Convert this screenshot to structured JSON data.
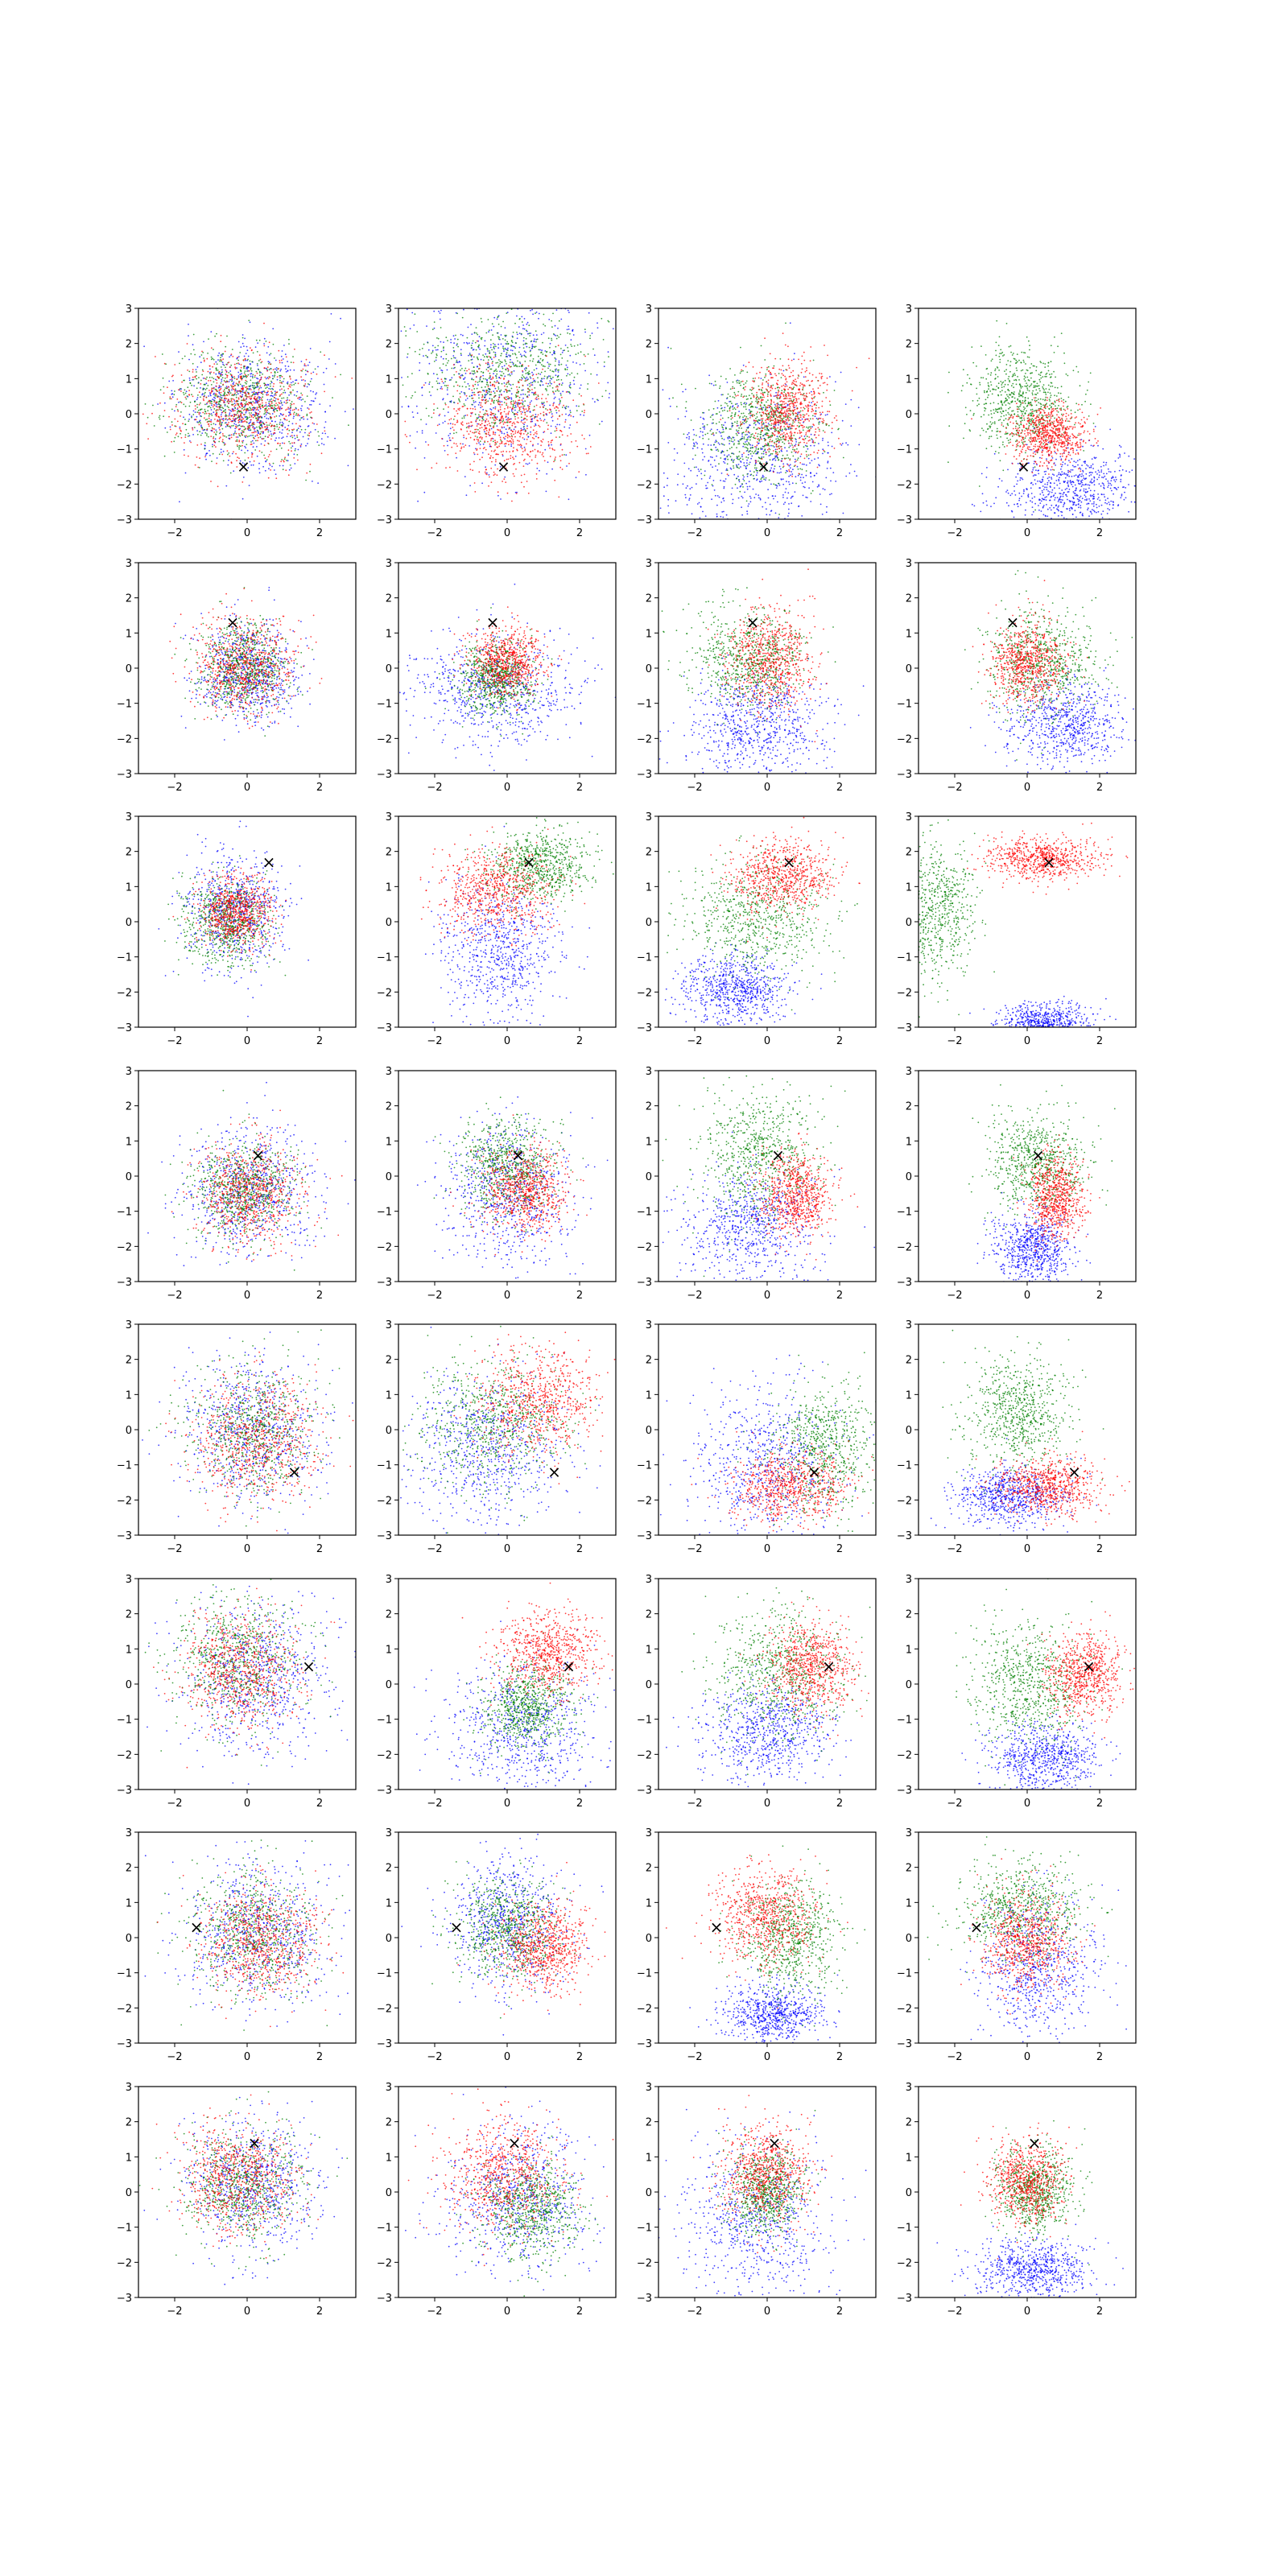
{
  "chart_data": {
    "type": "scatter",
    "layout": {
      "rows": 8,
      "cols": 4
    },
    "xlim": [
      -3,
      3
    ],
    "ylim": [
      -3,
      3
    ],
    "xticks": [
      -2,
      0,
      2
    ],
    "yticks": [
      -3,
      -2,
      -1,
      0,
      1,
      2,
      3
    ],
    "xtick_labels": [
      "−2",
      "0",
      "2"
    ],
    "ytick_labels": [
      "−3",
      "−2",
      "−1",
      "0",
      "1",
      "2",
      "3"
    ],
    "grid": false,
    "legend": false,
    "colors": {
      "blue": "#0000ff",
      "green": "#008000",
      "red": "#ff0000",
      "marker": "#000000"
    },
    "marker_symbol": "×",
    "series_colors": [
      "blue",
      "green",
      "red"
    ],
    "points_per_series": 700,
    "note_values": "each series is a dense Gaussian point cloud; values given as centre (cx, cy) and spread (sx, sy) in data units",
    "rows_data": [
      {
        "marker": [
          -0.1,
          -1.5
        ],
        "panels": [
          [
            [
              0.1,
              0.2,
              1.0,
              0.9
            ],
            [
              -0.2,
              0.4,
              0.9,
              0.8
            ],
            [
              -0.1,
              0.2,
              0.9,
              0.8
            ]
          ],
          [
            [
              0.0,
              1.0,
              1.4,
              1.3
            ],
            [
              0.0,
              1.2,
              1.2,
              0.9
            ],
            [
              0.0,
              -0.3,
              0.9,
              0.8
            ]
          ],
          [
            [
              -0.4,
              -1.4,
              1.3,
              1.1
            ],
            [
              -0.2,
              -0.3,
              0.8,
              0.8
            ],
            [
              0.5,
              0.1,
              0.6,
              0.7
            ]
          ],
          [
            [
              1.2,
              -2.2,
              0.9,
              0.6
            ],
            [
              -0.2,
              0.4,
              0.7,
              0.7
            ],
            [
              0.6,
              -0.6,
              0.5,
              0.4
            ]
          ]
        ]
      },
      {
        "marker": [
          -0.4,
          1.3
        ],
        "panels": [
          [
            [
              0.0,
              -0.1,
              0.7,
              0.7
            ],
            [
              -0.1,
              0.0,
              0.6,
              0.6
            ],
            [
              -0.1,
              0.1,
              0.7,
              0.7
            ]
          ],
          [
            [
              -0.3,
              -0.6,
              1.2,
              0.8
            ],
            [
              -0.3,
              -0.3,
              0.5,
              0.5
            ],
            [
              0.0,
              0.2,
              0.5,
              0.5
            ]
          ],
          [
            [
              -0.3,
              -1.6,
              1.0,
              0.7
            ],
            [
              -0.5,
              0.3,
              0.8,
              0.7
            ],
            [
              0.1,
              0.2,
              0.6,
              0.7
            ]
          ],
          [
            [
              1.1,
              -1.6,
              0.8,
              0.6
            ],
            [
              0.4,
              0.2,
              0.8,
              0.8
            ],
            [
              0.0,
              0.2,
              0.5,
              0.6
            ]
          ]
        ]
      },
      {
        "marker": [
          0.6,
          1.7
        ],
        "panels": [
          [
            [
              -0.3,
              0.3,
              0.7,
              0.8
            ],
            [
              -0.6,
              0.0,
              0.6,
              0.6
            ],
            [
              -0.3,
              0.3,
              0.5,
              0.5
            ]
          ],
          [
            [
              -0.2,
              -0.9,
              0.8,
              1.0
            ],
            [
              0.9,
              1.6,
              0.7,
              0.5
            ],
            [
              -0.3,
              0.9,
              0.8,
              0.6
            ]
          ],
          [
            [
              -0.9,
              -1.9,
              0.7,
              0.5
            ],
            [
              -0.3,
              0.1,
              1.0,
              0.8
            ],
            [
              0.4,
              1.3,
              0.7,
              0.5
            ]
          ],
          [
            [
              0.5,
              -2.9,
              0.6,
              0.3
            ],
            [
              -2.6,
              0.3,
              0.6,
              1.0
            ],
            [
              0.4,
              1.8,
              0.8,
              0.3
            ]
          ]
        ]
      },
      {
        "marker": [
          0.3,
          0.6
        ],
        "panels": [
          [
            [
              0.1,
              -0.4,
              0.9,
              0.9
            ],
            [
              -0.1,
              -0.4,
              0.7,
              0.7
            ],
            [
              0.1,
              -0.5,
              0.7,
              0.7
            ]
          ],
          [
            [
              0.0,
              -0.5,
              0.9,
              1.0
            ],
            [
              0.0,
              0.3,
              0.7,
              0.7
            ],
            [
              0.5,
              -0.4,
              0.6,
              0.6
            ]
          ],
          [
            [
              -0.5,
              -1.4,
              0.9,
              0.8
            ],
            [
              -0.2,
              0.6,
              0.8,
              0.9
            ],
            [
              0.8,
              -0.5,
              0.5,
              0.6
            ]
          ],
          [
            [
              0.2,
              -2.1,
              0.5,
              0.5
            ],
            [
              0.3,
              0.4,
              0.7,
              0.7
            ],
            [
              0.8,
              -0.6,
              0.4,
              0.6
            ]
          ]
        ]
      },
      {
        "marker": [
          1.3,
          -1.2
        ],
        "panels": [
          [
            [
              0.1,
              0.0,
              1.0,
              1.1
            ],
            [
              0.2,
              0.0,
              0.9,
              0.9
            ],
            [
              0.3,
              -0.3,
              0.9,
              0.9
            ]
          ],
          [
            [
              -0.6,
              -0.6,
              1.1,
              1.1
            ],
            [
              -0.4,
              0.2,
              1.0,
              0.9
            ],
            [
              0.9,
              0.8,
              0.8,
              0.8
            ]
          ],
          [
            [
              0.0,
              -1.0,
              1.0,
              1.2
            ],
            [
              1.6,
              -0.5,
              0.7,
              0.9
            ],
            [
              0.7,
              -1.6,
              0.8,
              0.5
            ]
          ],
          [
            [
              -0.5,
              -1.9,
              0.8,
              0.4
            ],
            [
              -0.3,
              0.5,
              0.7,
              0.8
            ],
            [
              0.6,
              -1.6,
              0.7,
              0.4
            ]
          ]
        ]
      },
      {
        "marker": [
          1.7,
          0.5
        ],
        "panels": [
          [
            [
              0.2,
              0.2,
              1.1,
              1.1
            ],
            [
              -0.3,
              0.7,
              0.9,
              0.9
            ],
            [
              -0.2,
              0.4,
              0.8,
              0.8
            ]
          ],
          [
            [
              0.4,
              -1.3,
              1.0,
              0.9
            ],
            [
              0.6,
              -0.6,
              0.6,
              0.6
            ],
            [
              1.1,
              0.9,
              0.7,
              0.6
            ]
          ],
          [
            [
              0.0,
              -1.4,
              0.9,
              0.7
            ],
            [
              0.3,
              0.3,
              0.9,
              0.9
            ],
            [
              1.2,
              0.5,
              0.6,
              0.6
            ]
          ],
          [
            [
              0.5,
              -2.1,
              0.8,
              0.5
            ],
            [
              0.1,
              0.0,
              0.8,
              0.9
            ],
            [
              1.6,
              0.3,
              0.5,
              0.6
            ]
          ]
        ]
      },
      {
        "marker": [
          -1.4,
          0.3
        ],
        "panels": [
          [
            [
              0.2,
              0.1,
              1.0,
              1.0
            ],
            [
              0.2,
              0.1,
              0.9,
              0.9
            ],
            [
              0.4,
              -0.1,
              0.8,
              0.8
            ]
          ],
          [
            [
              0.0,
              0.4,
              0.8,
              0.9
            ],
            [
              0.0,
              0.2,
              0.7,
              0.7
            ],
            [
              1.0,
              -0.3,
              0.6,
              0.6
            ]
          ],
          [
            [
              0.2,
              -2.2,
              0.7,
              0.4
            ],
            [
              0.6,
              0.0,
              0.7,
              0.8
            ],
            [
              -0.1,
              0.6,
              0.7,
              0.7
            ]
          ],
          [
            [
              0.3,
              -1.0,
              0.8,
              1.0
            ],
            [
              -0.1,
              0.8,
              0.8,
              0.7
            ],
            [
              0.0,
              -0.1,
              0.6,
              0.7
            ]
          ]
        ]
      },
      {
        "marker": [
          0.2,
          1.4
        ],
        "panels": [
          [
            [
              0.2,
              0.2,
              0.9,
              0.9
            ],
            [
              -0.1,
              0.2,
              0.8,
              0.8
            ],
            [
              -0.3,
              0.4,
              0.8,
              0.8
            ]
          ],
          [
            [
              0.3,
              -0.2,
              1.0,
              1.0
            ],
            [
              0.6,
              -0.5,
              0.7,
              0.7
            ],
            [
              -0.1,
              0.5,
              0.8,
              0.8
            ]
          ],
          [
            [
              -0.3,
              -0.8,
              1.0,
              1.2
            ],
            [
              0.0,
              0.0,
              0.5,
              0.6
            ],
            [
              0.0,
              0.5,
              0.6,
              0.7
            ]
          ],
          [
            [
              0.2,
              -2.2,
              0.8,
              0.4
            ],
            [
              0.2,
              0.0,
              0.5,
              0.6
            ],
            [
              0.0,
              0.3,
              0.5,
              0.6
            ]
          ]
        ]
      }
    ]
  }
}
